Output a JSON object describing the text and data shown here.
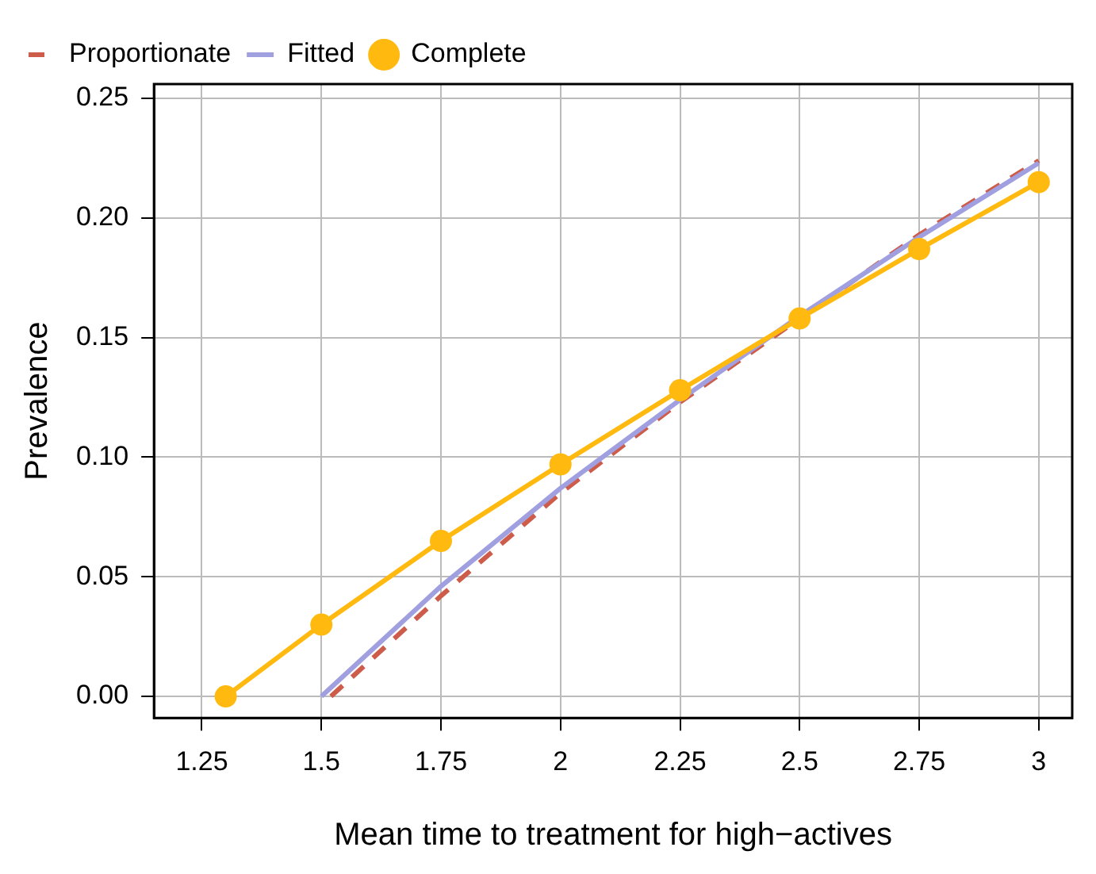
{
  "chart_data": {
    "type": "line",
    "xlabel": "Mean time to treatment for high−actives",
    "ylabel": "Prevalence",
    "xlim": [
      1.15,
      3.07
    ],
    "ylim": [
      -0.009,
      0.256
    ],
    "xticks": [
      1.25,
      1.5,
      1.75,
      2,
      2.25,
      2.5,
      2.75,
      3
    ],
    "yticks": [
      {
        "value": 0,
        "label": "0.00"
      },
      {
        "value": 0.05,
        "label": "0.05"
      },
      {
        "value": 0.1,
        "label": "0.10"
      },
      {
        "value": 0.15,
        "label": "0.15"
      },
      {
        "value": 0.2,
        "label": "0.20"
      },
      {
        "value": 0.25,
        "label": "0.25"
      }
    ],
    "grid": true,
    "legend": "top left",
    "series": [
      {
        "name": "Proportionate",
        "color": "#cd5c4a",
        "line_style": "dashed",
        "marker": "none",
        "x": [
          1.52,
          1.75,
          2,
          2.25,
          2.5,
          2.75,
          3
        ],
        "values": [
          0,
          0.042,
          0.085,
          0.123,
          0.158,
          0.193,
          0.224
        ]
      },
      {
        "name": "Fitted",
        "color": "#a09fe0",
        "line_style": "solid",
        "marker": "none",
        "x": [
          1.5,
          1.75,
          2,
          2.25,
          2.5,
          2.75,
          3
        ],
        "values": [
          0,
          0.046,
          0.087,
          0.124,
          0.159,
          0.192,
          0.223
        ]
      },
      {
        "name": "Complete",
        "color": "#ffb90f",
        "line_style": "solid",
        "marker": "circle",
        "x": [
          1.3,
          1.5,
          1.75,
          2,
          2.25,
          2.5,
          2.75,
          3
        ],
        "values": [
          0,
          0.03,
          0.065,
          0.097,
          0.128,
          0.158,
          0.187,
          0.215
        ]
      }
    ]
  }
}
